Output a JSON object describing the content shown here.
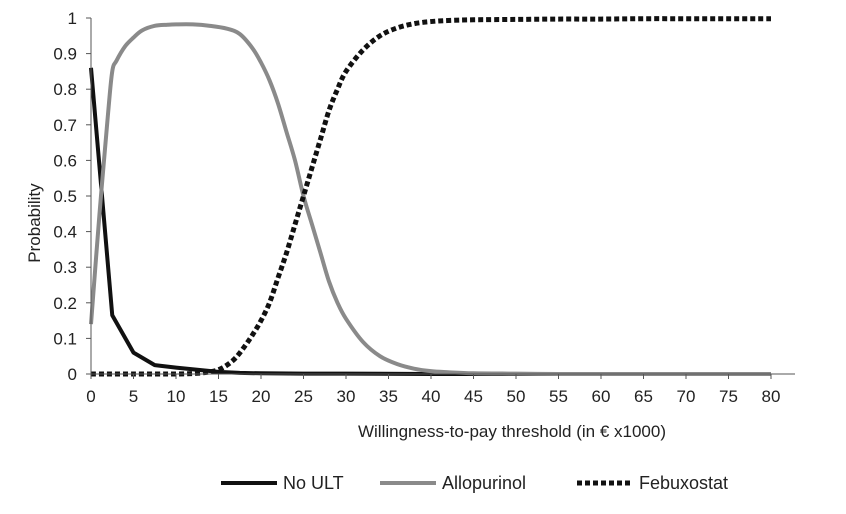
{
  "chart_data": {
    "type": "line",
    "title": "",
    "xlabel": "Willingness-to-pay threshold (in € x1000)",
    "ylabel": "Probability",
    "xlim": [
      0,
      80
    ],
    "ylim": [
      0,
      1
    ],
    "xticks": [
      0,
      5,
      10,
      15,
      20,
      25,
      30,
      35,
      40,
      45,
      50,
      55,
      60,
      65,
      70,
      75,
      80
    ],
    "yticks": [
      0,
      0.1,
      0.2,
      0.3,
      0.4,
      0.5,
      0.6,
      0.7,
      0.8,
      0.9,
      1
    ],
    "grid": false,
    "legend_position": "bottom",
    "series": [
      {
        "name": "No ULT",
        "color": "#111111",
        "style": "solid",
        "x": [
          0,
          2.5,
          5,
          7.5,
          10,
          12.5,
          15,
          17.5,
          20,
          25,
          30,
          40,
          50,
          60,
          70,
          80
        ],
        "y": [
          0.86,
          0.165,
          0.06,
          0.025,
          0.018,
          0.012,
          0.006,
          0.003,
          0.002,
          0.001,
          0.001,
          0,
          0,
          0,
          0,
          0
        ]
      },
      {
        "name": "Allopurinol",
        "color": "#8a8a8a",
        "style": "solid",
        "x": [
          0,
          1,
          2,
          2.5,
          3,
          4,
          5,
          6,
          7.5,
          9,
          10,
          12,
          14,
          16,
          17.5,
          19,
          20,
          21,
          22,
          23,
          24,
          25,
          26,
          27,
          28,
          29,
          30,
          32,
          34,
          36,
          38,
          40,
          42,
          45,
          50,
          55,
          60,
          65,
          70,
          75,
          80
        ],
        "y": [
          0.14,
          0.45,
          0.73,
          0.85,
          0.88,
          0.92,
          0.945,
          0.965,
          0.978,
          0.981,
          0.982,
          0.982,
          0.978,
          0.97,
          0.955,
          0.915,
          0.875,
          0.825,
          0.76,
          0.68,
          0.6,
          0.5,
          0.42,
          0.34,
          0.26,
          0.2,
          0.155,
          0.09,
          0.05,
          0.028,
          0.015,
          0.008,
          0.005,
          0.002,
          0.001,
          0,
          0,
          0,
          0,
          0,
          0
        ]
      },
      {
        "name": "Febuxostat",
        "color": "#111111",
        "style": "dotted",
        "x": [
          0,
          5,
          10,
          12.5,
          14,
          15,
          16,
          17,
          18,
          19,
          20,
          21,
          22,
          23,
          24,
          25,
          26,
          27,
          28,
          29,
          30,
          32,
          34,
          36,
          38,
          40,
          42,
          45,
          50,
          55,
          60,
          65,
          70,
          75,
          80
        ],
        "y": [
          0,
          0,
          0,
          0.002,
          0.006,
          0.012,
          0.025,
          0.045,
          0.075,
          0.11,
          0.15,
          0.2,
          0.27,
          0.34,
          0.42,
          0.5,
          0.58,
          0.66,
          0.74,
          0.8,
          0.85,
          0.91,
          0.95,
          0.972,
          0.984,
          0.99,
          0.993,
          0.995,
          0.996,
          0.997,
          0.997,
          0.998,
          0.998,
          0.998,
          0.998
        ]
      }
    ]
  }
}
